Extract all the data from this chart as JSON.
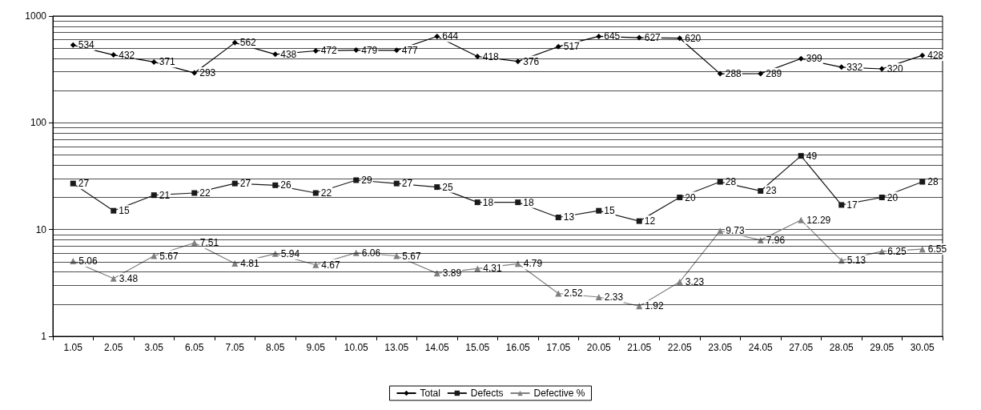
{
  "chart_data": {
    "type": "line",
    "categories": [
      "1.05",
      "2.05",
      "3.05",
      "6.05",
      "7.05",
      "8.05",
      "9.05",
      "10.05",
      "13.05",
      "14.05",
      "15.05",
      "16.05",
      "17.05",
      "20.05",
      "21.05",
      "22.05",
      "23.05",
      "24.05",
      "27.05",
      "28.05",
      "29.05",
      "30.05"
    ],
    "series": [
      {
        "name": "Total",
        "color": "#000000",
        "marker": "diamond",
        "values": [
          534,
          432,
          371,
          293,
          562,
          438,
          472,
          479,
          477,
          644,
          418,
          376,
          517,
          645,
          627,
          620,
          288,
          289,
          399,
          332,
          320,
          428
        ]
      },
      {
        "name": "Defects",
        "color": "#1a1a1a",
        "marker": "square",
        "values": [
          27,
          15,
          21,
          22,
          27,
          26,
          22,
          29,
          27,
          25,
          18,
          18,
          13,
          15,
          12,
          20,
          28,
          23,
          49,
          17,
          20,
          28
        ]
      },
      {
        "name": "Defective %",
        "color": "#808080",
        "marker": "triangle",
        "values": [
          5.06,
          3.48,
          5.67,
          7.51,
          4.81,
          5.94,
          4.67,
          6.06,
          5.67,
          3.89,
          4.31,
          4.79,
          2.52,
          2.33,
          1.92,
          3.23,
          9.73,
          7.96,
          12.29,
          5.13,
          6.25,
          6.55
        ]
      }
    ],
    "log": true,
    "ylim": [
      1,
      1000
    ],
    "yticks": [
      1,
      10,
      100,
      1000
    ],
    "grid": "y",
    "legend": "bottom",
    "data_labels": true,
    "line_style": "solid"
  }
}
